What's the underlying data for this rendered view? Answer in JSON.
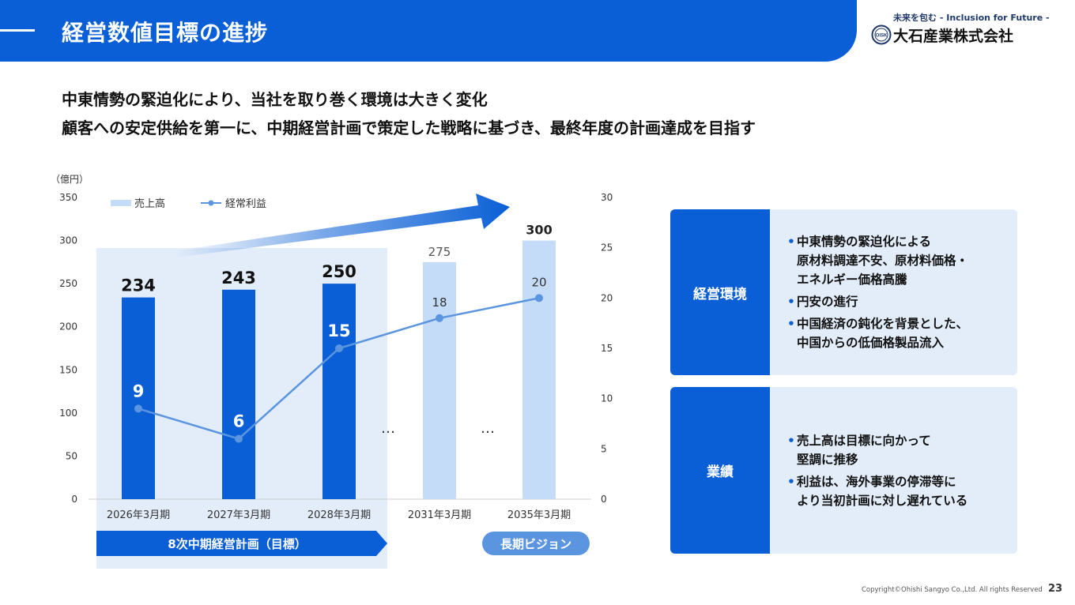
{
  "header": {
    "title": "経営数値目標の進捗"
  },
  "brand": {
    "tagline": "未来を包む - Inclusion for Future -",
    "name": "大石産業株式会社",
    "logo_icon": "oisk-seal-logo"
  },
  "headline": {
    "line1": "中東情勢の緊迫化により、当社を取り巻く環境は大きく変化",
    "line2": "顧客への安定供給を第一に、中期経営計画で策定した戦略に基づき、最終年度の計画達成を目指す"
  },
  "chart_data": {
    "type": "bar",
    "unit": "（億円）",
    "categories": [
      "2026年3月期",
      "2027年3月期",
      "2028年3月期",
      "2031年3月期",
      "2035年3月期"
    ],
    "series": [
      {
        "name": "売上高",
        "type": "bar",
        "axis": "left",
        "values": [
          234,
          243,
          250,
          275,
          300
        ],
        "labels": [
          "234",
          "243",
          "250",
          "275",
          "300"
        ]
      },
      {
        "name": "経常利益",
        "type": "line",
        "axis": "right",
        "values": [
          9,
          6,
          15,
          18,
          20
        ],
        "labels": [
          "9",
          "6",
          "15",
          "18",
          "20"
        ]
      }
    ],
    "y_left": {
      "range": [
        0,
        350
      ],
      "ticks": [
        "0",
        "50",
        "100",
        "150",
        "200",
        "250",
        "300",
        "350"
      ]
    },
    "y_right": {
      "range": [
        0,
        30
      ],
      "ticks": [
        "0",
        "5",
        "10",
        "15",
        "20",
        "25",
        "30"
      ]
    },
    "legend_position": "top-left",
    "ellipsis": [
      "…",
      "…"
    ],
    "period_labels": {
      "plan": "8次中期経営計画（目標）",
      "vision": "長期ビジョン"
    },
    "colors": {
      "bar_dark": "#0a5fd6",
      "bar_light": "#c5dcf8",
      "line": "#5b95e0",
      "highlight": "#e3edfa"
    }
  },
  "panels": [
    {
      "title": "経営環境",
      "items": [
        "中東情勢の緊迫化による\n原材料調達不安、原材料価格・\nエネルギー価格高騰",
        "円安の進行",
        "中国経済の鈍化を背景とした、\n中国からの低価格製品流入"
      ]
    },
    {
      "title": "業績",
      "items": [
        "売上高は目標に向かって\n堅調に推移",
        "利益は、海外事業の停滞等に\nより当初計画に対し遅れている"
      ]
    }
  ],
  "footer": {
    "copyright": "Copyright©Ohishi Sangyo Co.,Ltd. All rights Reserved",
    "page": "23"
  }
}
